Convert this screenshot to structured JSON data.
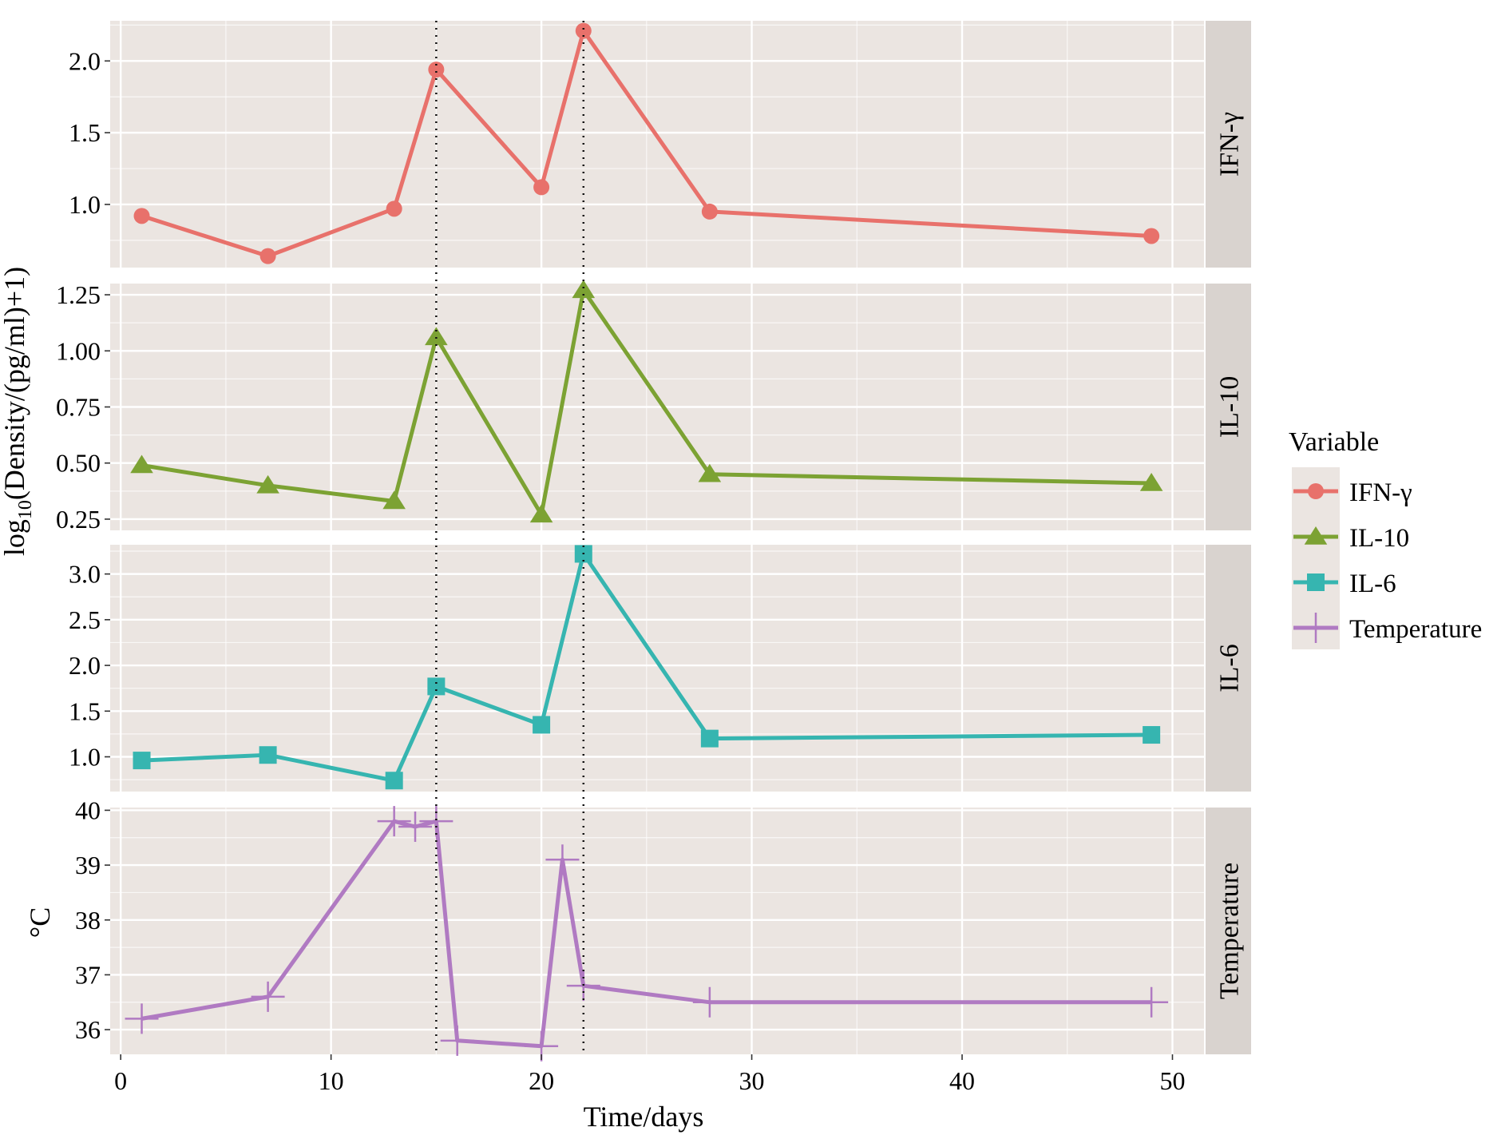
{
  "chart_data": {
    "type": "line",
    "xlabel": "Time/days",
    "x_ticks": [
      0,
      10,
      20,
      30,
      40,
      50
    ],
    "xlim": [
      -0.5,
      51.5
    ],
    "grid": true,
    "reference_lines_x": [
      15,
      22
    ],
    "ylabel_top": "log10(Density/(pg/ml)+1)",
    "ylabel_top_parts": {
      "base": "log",
      "sub": "10",
      "rest": "(Density/(pg/ml)+1)"
    },
    "ylabel_bottom": "°C",
    "legend": {
      "title": "Variable",
      "position": "right",
      "items": [
        {
          "label": "IFN-γ",
          "color": "#E8716B",
          "shape": "circle"
        },
        {
          "label": "IL-10",
          "color": "#7CA233",
          "shape": "triangle"
        },
        {
          "label": "IL-6",
          "color": "#36B5B0",
          "shape": "square"
        },
        {
          "label": "Temperature",
          "color": "#B07AC2",
          "shape": "cross"
        }
      ]
    },
    "panels": [
      {
        "strip": "IFN-γ",
        "color": "#E8716B",
        "shape": "circle",
        "ylim": [
          0.56,
          2.28
        ],
        "y_ticks": [
          1.0,
          1.5,
          2.0
        ],
        "y_tick_labels": [
          "1.0",
          "1.5",
          "2.0"
        ],
        "x": [
          1,
          7,
          13,
          15,
          20,
          22,
          28,
          49
        ],
        "y": [
          0.92,
          0.64,
          0.97,
          1.94,
          1.12,
          2.21,
          0.95,
          0.78
        ]
      },
      {
        "strip": "IL-10",
        "color": "#7CA233",
        "shape": "triangle",
        "ylim": [
          0.2,
          1.3
        ],
        "y_ticks": [
          0.25,
          0.5,
          0.75,
          1.0,
          1.25
        ],
        "y_tick_labels": [
          "0.25",
          "0.50",
          "0.75",
          "1.00",
          "1.25"
        ],
        "x": [
          1,
          7,
          13,
          15,
          20,
          22,
          28,
          49
        ],
        "y": [
          0.49,
          0.4,
          0.33,
          1.06,
          0.27,
          1.27,
          0.45,
          0.41
        ]
      },
      {
        "strip": "IL-6",
        "color": "#36B5B0",
        "shape": "square",
        "ylim": [
          0.62,
          3.32
        ],
        "y_ticks": [
          1.0,
          1.5,
          2.0,
          2.5,
          3.0
        ],
        "y_tick_labels": [
          "1.0",
          "1.5",
          "2.0",
          "2.5",
          "3.0"
        ],
        "x": [
          1,
          7,
          13,
          15,
          20,
          22,
          28,
          49
        ],
        "y": [
          0.96,
          1.02,
          0.74,
          1.77,
          1.35,
          3.22,
          1.2,
          1.24
        ]
      },
      {
        "strip": "Temperature",
        "color": "#B07AC2",
        "shape": "cross",
        "ylim": [
          35.55,
          40.05
        ],
        "y_ticks": [
          36,
          37,
          38,
          39,
          40
        ],
        "y_tick_labels": [
          "36",
          "37",
          "38",
          "39",
          "40"
        ],
        "x": [
          1,
          7,
          13,
          14,
          15,
          16,
          20,
          21,
          22,
          28,
          49
        ],
        "y": [
          36.2,
          36.6,
          39.8,
          39.7,
          39.8,
          35.8,
          35.7,
          39.1,
          36.8,
          36.5,
          36.5
        ]
      }
    ]
  }
}
